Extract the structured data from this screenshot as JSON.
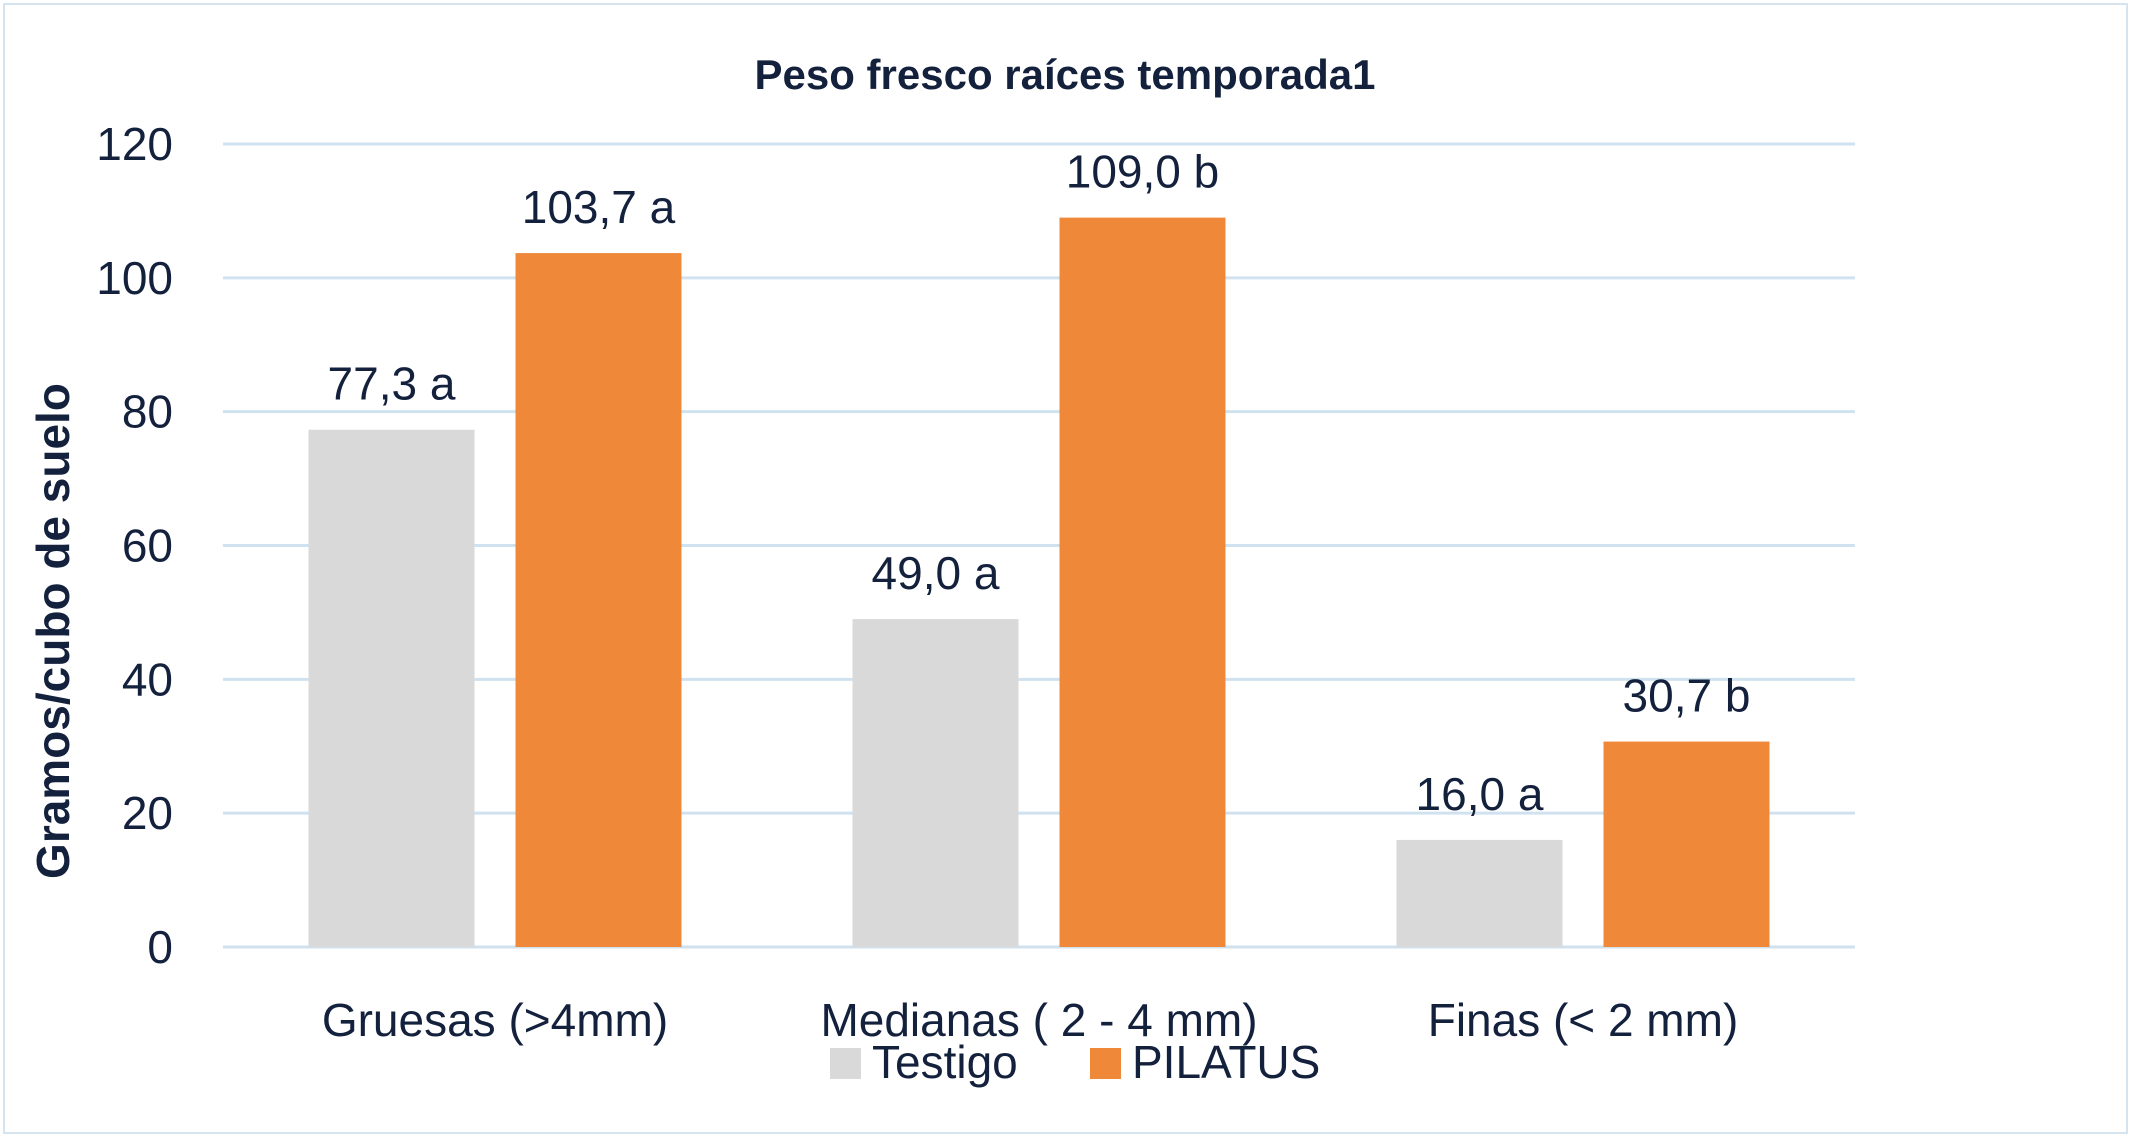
{
  "chart_data": {
    "type": "bar",
    "title": "Peso fresco raíces temporada1",
    "xlabel": "",
    "ylabel": "Gramos/cubo de suelo",
    "ylim": [
      0,
      120
    ],
    "yticks": [
      0,
      20,
      40,
      60,
      80,
      100,
      120
    ],
    "grid": true,
    "legend_position": "bottom",
    "categories": [
      "Gruesas (>4mm)",
      "Medianas ( 2 - 4 mm)",
      "Finas (< 2 mm)"
    ],
    "series": [
      {
        "name": "Testigo",
        "color": "#d9d9d9",
        "values": [
          77.3,
          49.0,
          16.0
        ],
        "labels": [
          "77,3 a",
          "49,0 a",
          "16,0 a"
        ]
      },
      {
        "name": "PILATUS",
        "color": "#f0883a",
        "values": [
          103.7,
          109.0,
          30.7
        ],
        "labels": [
          "103,7 a",
          "109,0 b",
          "30,7 b"
        ]
      }
    ]
  }
}
